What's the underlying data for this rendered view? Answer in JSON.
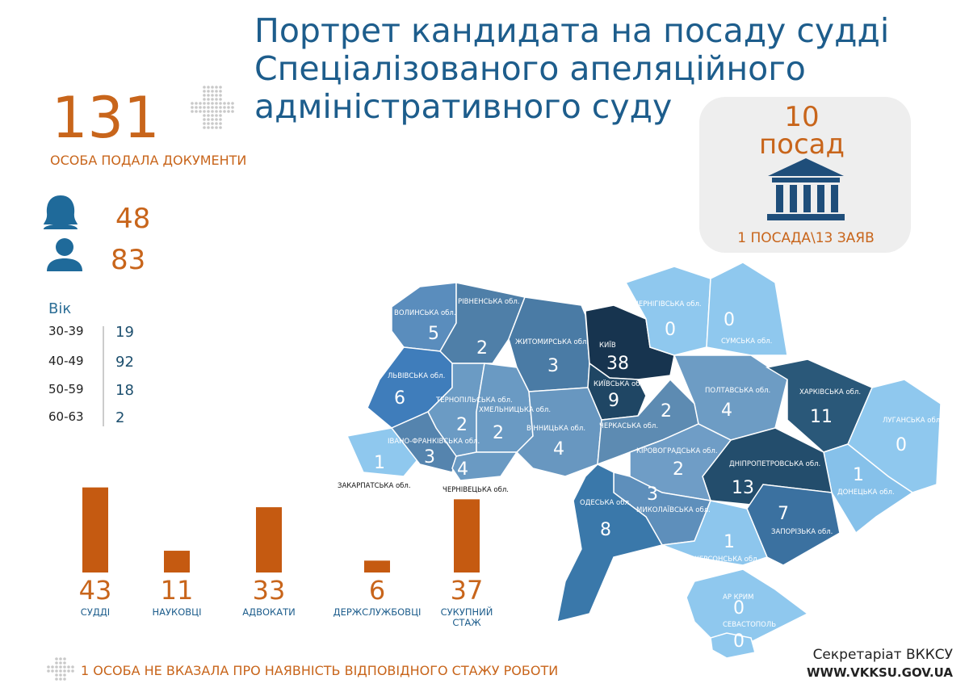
{
  "title_lines": [
    "Портрет кандидата на посаду судді",
    "Спеціалізованого апеляційного",
    "адміністративного суду"
  ],
  "applicants": {
    "count": 131,
    "label": "ОСОБА ПОДАЛА ДОКУМЕНТИ"
  },
  "gender": {
    "female": 48,
    "male": 83
  },
  "positions": {
    "count": 10,
    "unit": "посад",
    "ratio": "1 ПОСАДА\\13 ЗАЯВ"
  },
  "age": {
    "title": "Вік",
    "rows": [
      {
        "range": "30-39",
        "count": 19
      },
      {
        "range": "40-49",
        "count": 92
      },
      {
        "range": "50-59",
        "count": 18
      },
      {
        "range": "60-63",
        "count": 2
      }
    ]
  },
  "experience": {
    "items": [
      {
        "value": 43,
        "label": "СУДДІ"
      },
      {
        "value": 11,
        "label": "НАУКОВЦІ"
      },
      {
        "value": 33,
        "label": "АДВОКАТИ"
      },
      {
        "value": 6,
        "label": "ДЕРЖСЛУЖБОВЦІ"
      },
      {
        "value": 37,
        "label": "СУКУПНИЙ СТАЖ"
      }
    ],
    "color": "#c55a11"
  },
  "note": "1 ОСОБА НЕ ВКАЗАЛА ПРО НАЯВНІСТЬ ВІДПОВІДНОГО СТАЖУ РОБОТИ",
  "footer": {
    "org": "Секретаріат ВККСУ",
    "site": "WWW.VKKSU.GOV.UA"
  },
  "map": {
    "regions": [
      {
        "name": "ВОЛИНСЬКА обл.",
        "value": 5,
        "color": "#5a8dbd"
      },
      {
        "name": "РІВНЕНСЬКА обл.",
        "value": 2,
        "color": "#4f7fa8"
      },
      {
        "name": "ЖИТОМИРСЬКА обл.",
        "value": 3,
        "color": "#4a7ba5"
      },
      {
        "name": "КИЇВ",
        "value": 38,
        "color": "#17344f"
      },
      {
        "name": "КИЇВСЬКА обл.",
        "value": 9,
        "color": "#1f4664"
      },
      {
        "name": "ЧЕРНІГІВСЬКА обл.",
        "value": 0,
        "color": "#8fc8ee"
      },
      {
        "name": "СУМСЬКА обл.",
        "value": 0,
        "color": "#8fc8ee"
      },
      {
        "name": "ЛЬВІВСЬКА обл.",
        "value": 6,
        "color": "#3f7dbb"
      },
      {
        "name": "ТЕРНОПІЛЬСЬКА обл.",
        "value": 2,
        "color": "#6b9bc4"
      },
      {
        "name": "ХМЕЛЬНИЦЬКА обл.",
        "value": 2,
        "color": "#6a9ac3"
      },
      {
        "name": "ВІННИЦЬКА обл.",
        "value": 4,
        "color": "#6897c0"
      },
      {
        "name": "ЧЕРКАСЬКА обл.",
        "value": 2,
        "color": "#5d8bb2"
      },
      {
        "name": "ПОЛТАВСЬКА обл.",
        "value": 4,
        "color": "#6d9cc4"
      },
      {
        "name": "ХАРКІВСЬКА обл.",
        "value": 11,
        "color": "#2a5879"
      },
      {
        "name": "ЛУГАНСЬКА обл.",
        "value": 0,
        "color": "#8fc8ee"
      },
      {
        "name": "ДОНЕЦЬКА обл.",
        "value": 1,
        "color": "#86c1ea"
      },
      {
        "name": "ДНІПРОПЕТРОВСЬКА обл.",
        "value": 13,
        "color": "#234d6c"
      },
      {
        "name": "ЗАПОРІЗЬКА обл.",
        "value": 7,
        "color": "#3b71a0"
      },
      {
        "name": "КІРОВОГРАДСЬКА обл.",
        "value": 2,
        "color": "#6f9dc6"
      },
      {
        "name": "МИКОЛАЇВСЬКА обл.",
        "value": 3,
        "color": "#5e8fbb"
      },
      {
        "name": "ОДЕСЬКА обл.",
        "value": 8,
        "color": "#3a78aa"
      },
      {
        "name": "ХЕРСОНСЬКА обл.",
        "value": 1,
        "color": "#8dc6ed"
      },
      {
        "name": "АР КРИМ",
        "value": 0,
        "color": "#8fc8ee"
      },
      {
        "name": "СЕВАСТОПОЛЬ",
        "value": 0,
        "color": "#8fc8ee"
      },
      {
        "name": "ЗАКАРПАТСЬКА обл.",
        "value": 1,
        "color": "#8fc8ee"
      },
      {
        "name": "ІВАНО-ФРАНКІВСЬКА обл.",
        "value": 3,
        "color": "#5584ae"
      },
      {
        "name": "ЧЕРНІВЕЦЬКА обл.",
        "value": 4,
        "color": "#6a9ac3"
      }
    ]
  }
}
